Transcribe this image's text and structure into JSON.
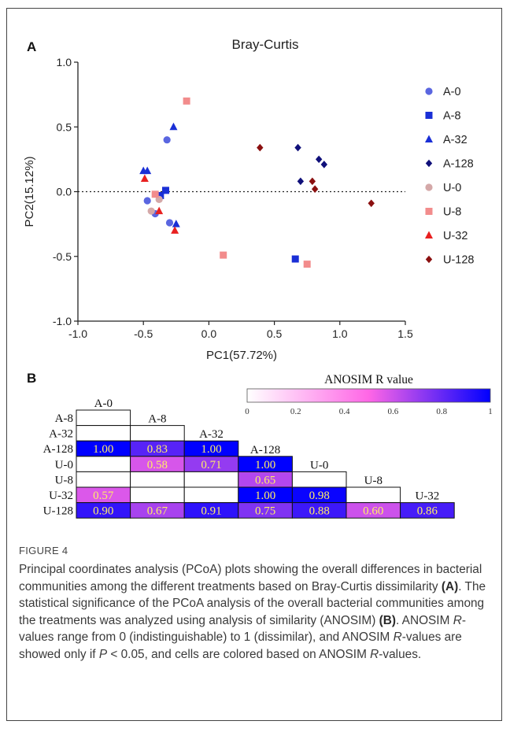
{
  "panel_a_letter": "A",
  "panel_b_letter": "B",
  "chart_data": [
    {
      "type": "scatter",
      "title": "Bray-Curtis",
      "xlabel": "PC1(57.72%)",
      "ylabel": "PC2(15.12%)",
      "xlim": [
        -1.0,
        1.5
      ],
      "ylim": [
        -1.0,
        1.0
      ],
      "xticks": [
        "-1.0",
        "-0.5",
        "0.0",
        "0.5",
        "1.0",
        "1.5"
      ],
      "yticks": [
        "-1.0",
        "-0.5",
        "0.0",
        "0.5",
        "1.0"
      ],
      "reference_line": {
        "y": 0,
        "style": "dotted"
      },
      "legend_position": "right",
      "series": [
        {
          "name": "A-0",
          "marker": "circle",
          "color": "#5a66e0",
          "points": [
            [
              -0.32,
              0.4
            ],
            [
              -0.47,
              -0.07
            ],
            [
              -0.41,
              -0.17
            ],
            [
              -0.3,
              -0.24
            ]
          ]
        },
        {
          "name": "A-8",
          "marker": "square",
          "color": "#1a2fd6",
          "points": [
            [
              -0.33,
              0.01
            ],
            [
              -0.37,
              -0.03
            ],
            [
              0.66,
              -0.52
            ]
          ]
        },
        {
          "name": "A-32",
          "marker": "triangle",
          "color": "#1a2fd6",
          "points": [
            [
              -0.27,
              0.5
            ],
            [
              -0.5,
              0.16
            ],
            [
              -0.47,
              0.16
            ],
            [
              -0.25,
              -0.25
            ]
          ]
        },
        {
          "name": "A-128",
          "marker": "diamond",
          "color": "#10107a",
          "points": [
            [
              0.68,
              0.34
            ],
            [
              0.7,
              0.08
            ],
            [
              0.84,
              0.25
            ],
            [
              0.88,
              0.21
            ]
          ]
        },
        {
          "name": "U-0",
          "marker": "circle",
          "color": "#d4a8a8",
          "points": [
            [
              -0.44,
              -0.15
            ],
            [
              -0.38,
              -0.06
            ]
          ]
        },
        {
          "name": "U-8",
          "marker": "square",
          "color": "#f28c8c",
          "points": [
            [
              -0.17,
              0.7
            ],
            [
              0.11,
              -0.49
            ],
            [
              0.75,
              -0.56
            ],
            [
              -0.41,
              -0.02
            ]
          ]
        },
        {
          "name": "U-32",
          "marker": "triangle",
          "color": "#e82020",
          "points": [
            [
              -0.49,
              0.1
            ],
            [
              -0.38,
              -0.15
            ],
            [
              -0.26,
              -0.3
            ]
          ]
        },
        {
          "name": "U-128",
          "marker": "diamond",
          "color": "#8b1010",
          "points": [
            [
              0.39,
              0.34
            ],
            [
              0.79,
              0.08
            ],
            [
              0.81,
              0.02
            ],
            [
              1.24,
              -0.09
            ]
          ]
        }
      ]
    },
    {
      "type": "heatmap",
      "title": "ANOSIM R value",
      "colorbar_ticks": [
        "0",
        "0.2",
        "0.4",
        "0.6",
        "0.8",
        "1"
      ],
      "colorbar_range": [
        0,
        1
      ],
      "colorbar_colors": [
        "#ffffff",
        "#ff66e6",
        "#0000ff"
      ],
      "row_labels": [
        "A-8",
        "A-32",
        "A-128",
        "U-0",
        "U-8",
        "U-32",
        "U-128"
      ],
      "column_labels": [
        "A-0",
        "A-8",
        "A-32",
        "A-128",
        "U-0",
        "U-8",
        "U-32"
      ],
      "values": [
        [
          null
        ],
        [
          null,
          null
        ],
        [
          1.0,
          0.83,
          1.0
        ],
        [
          null,
          0.58,
          0.71,
          1.0
        ],
        [
          null,
          null,
          null,
          0.65,
          null
        ],
        [
          0.57,
          null,
          null,
          1.0,
          0.98,
          null
        ],
        [
          0.9,
          0.67,
          0.91,
          0.75,
          0.88,
          0.6,
          0.86
        ]
      ],
      "display_values": [
        [
          ""
        ],
        [
          "",
          ""
        ],
        [
          "1.00",
          "0.83",
          "1.00"
        ],
        [
          "",
          "0.58",
          "0.71",
          "1.00"
        ],
        [
          "",
          "",
          "",
          "0.65",
          ""
        ],
        [
          "0.57",
          "",
          "",
          "1.00",
          "0.98",
          ""
        ],
        [
          "0.90",
          "0.67",
          "0.91",
          "0.75",
          "0.88",
          "0.60",
          "0.86"
        ]
      ]
    }
  ],
  "caption": {
    "figure_label": "FIGURE 4",
    "text_html": "Principal coordinates analysis (PCoA) plots showing the overall differences in bacterial communities among the different treatments based on Bray-Curtis dissimilarity <b>(A)</b>. The statistical significance of the PCoA analysis of the overall bacterial communities among the treatments was analyzed using analysis of similarity (ANOSIM) <b>(B)</b>. ANOSIM <i>R</i>-values range from 0 (indistinguishable) to 1 (dissimilar), and ANOSIM <i>R</i>-values are showed only if <i>P</i> &lt; 0.05, and cells are colored based on ANOSIM <i>R</i>-values."
  }
}
